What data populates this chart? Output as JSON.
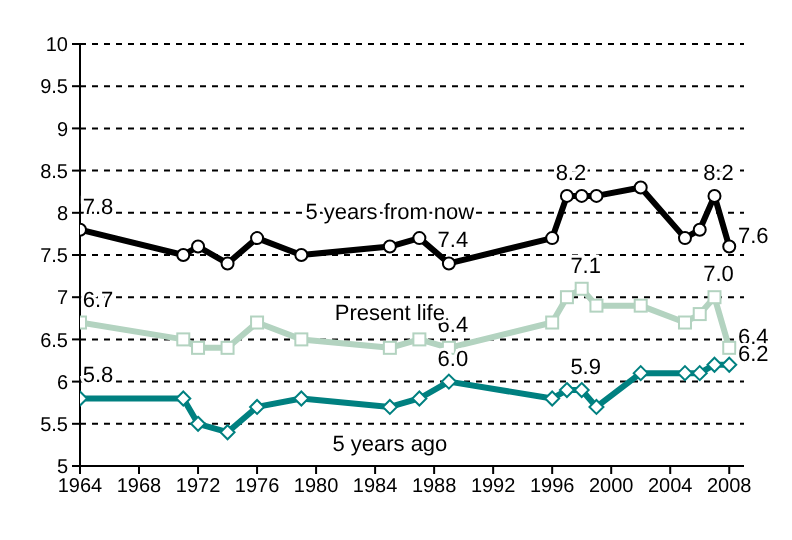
{
  "chart_data": {
    "type": "line",
    "x": [
      1964,
      1971,
      1972,
      1974,
      1976,
      1979,
      1985,
      1987,
      1989,
      1996,
      1997,
      1998,
      1999,
      2002,
      2005,
      2006,
      2007,
      2008
    ],
    "series": [
      {
        "name": "5 years from now",
        "color": "#000000",
        "marker": "circle",
        "values": [
          7.8,
          7.5,
          7.6,
          7.4,
          7.7,
          7.5,
          7.6,
          7.7,
          7.4,
          7.7,
          8.2,
          8.2,
          8.2,
          8.3,
          7.7,
          7.8,
          8.2,
          7.6
        ],
        "value_labels": [
          "7.8",
          null,
          null,
          null,
          null,
          null,
          null,
          null,
          "7.4",
          null,
          "8.2",
          null,
          null,
          null,
          null,
          null,
          "8.2",
          "7.6"
        ]
      },
      {
        "name": "Present life",
        "color": "#b3d3c0",
        "marker": "square",
        "values": [
          6.7,
          6.5,
          6.4,
          6.4,
          6.7,
          6.5,
          6.4,
          6.5,
          6.4,
          6.7,
          7.0,
          7.1,
          6.9,
          6.9,
          6.7,
          6.8,
          7.0,
          6.4
        ],
        "value_labels": [
          "6.7",
          null,
          null,
          null,
          null,
          null,
          null,
          null,
          "6.4",
          null,
          null,
          "7.1",
          null,
          null,
          null,
          null,
          "7.0",
          "6.4"
        ]
      },
      {
        "name": "5 years ago",
        "color": "#008080",
        "marker": "diamond",
        "values": [
          5.8,
          5.8,
          5.5,
          5.4,
          5.7,
          5.8,
          5.7,
          5.8,
          6.0,
          5.8,
          5.9,
          5.9,
          5.7,
          6.1,
          6.1,
          6.1,
          6.2,
          6.2
        ],
        "value_labels": [
          "5.8",
          null,
          null,
          null,
          null,
          null,
          null,
          null,
          "6.0",
          null,
          null,
          "5.9",
          null,
          null,
          null,
          null,
          null,
          "6.2"
        ]
      }
    ],
    "xlim": [
      1964,
      2009
    ],
    "xticks": [
      1964,
      1968,
      1972,
      1976,
      1980,
      1984,
      1988,
      1992,
      1996,
      2000,
      2004,
      2008
    ],
    "ylim": [
      5,
      10
    ],
    "yticks": [
      5,
      5.5,
      6,
      6.5,
      7,
      7.5,
      8,
      8.5,
      9,
      9.5,
      10
    ],
    "grid": "y",
    "legend": false,
    "line_style": "solid"
  }
}
